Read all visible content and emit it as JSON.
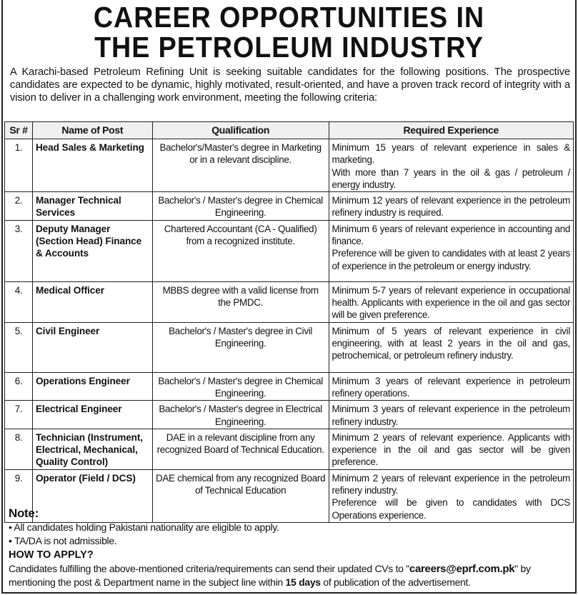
{
  "title": {
    "line1": "CAREER OPPORTUNITIES IN",
    "line2": "THE PETROLEUM INDUSTRY"
  },
  "intro": "A Karachi-based Petroleum Refining Unit is seeking suitable candidates for the following positions. The prospective candidates are expected to be dynamic, highly motivated, result-oriented, and have a proven track record of integrity with a vision to deliver in a challenging work environment, meeting the following criteria:",
  "table": {
    "headers": [
      "Sr #",
      "Name of Post",
      "Qualification",
      "Required Experience"
    ],
    "rows": [
      {
        "sr": "1.",
        "post": "Head Sales & Marketing",
        "qualification": "Bachelor's/Master's degree in Marketing or in a relevant discipline.",
        "experience": [
          "Minimum 15 years of relevant experience in sales & marketing.",
          "With more than 7 years in the oil & gas / petroleum / energy industry."
        ]
      },
      {
        "sr": "2.",
        "post": "Manager Technical Services",
        "qualification": "Bachelor's / Master's degree in Chemical Engineering.",
        "experience": [
          "Minimum 12 years of relevant experience in the petroleum refinery industry is required."
        ]
      },
      {
        "sr": "3.",
        "post": "Deputy Manager (Section Head) Finance & Accounts",
        "qualification": "Chartered Accountant (CA - Qualified) from a recognized institute.",
        "experience": [
          "Minimum 6 years of relevant experience in accounting and finance.",
          "Preference will be given to candidates with at least 2 years of experience in the petroleum or energy industry."
        ]
      },
      {
        "sr": "4.",
        "post": "Medical Officer",
        "qualification": "MBBS degree with a valid license from the PMDC.",
        "experience": [
          "Minimum 5-7 years of relevant experience in occupational health. Applicants with experience in the oil and gas sector will be given preference."
        ]
      },
      {
        "sr": "5.",
        "post": "Civil Engineer",
        "qualification": "Bachelor's / Master's degree in Civil Engineering.",
        "experience": [
          "Minimum of 5 years of relevant experience in civil engineering, with at least 2 years in the oil and gas, petrochemical, or petroleum refinery industry."
        ]
      },
      {
        "sr": "6.",
        "post": "Operations Engineer",
        "qualification": "Bachelor's / Master's degree in Chemical Engineering.",
        "experience": [
          "Minimum 3 years of relevant experience in petroleum refinery operations."
        ]
      },
      {
        "sr": "7.",
        "post": "Electrical Engineer",
        "qualification": "Bachelor's / Master's degree in Electrical Engineering.",
        "experience": [
          "Minimum 3 years of relevant experience in the petroleum refinery industry."
        ]
      },
      {
        "sr": "8.",
        "post": "Technician (Instrument, Electrical, Mechanical, Quality Control)",
        "qualification": "DAE in a relevant discipline from any recognized Board of Technical Education.",
        "experience": [
          "Minimum 2 years of relevant experience. Applicants with experience in the oil and gas sector will be given preference."
        ]
      },
      {
        "sr": "9.",
        "post": "Operator (Field / DCS)",
        "qualification": "DAE chemical from any recognized Board of Technical Education",
        "experience": [
          "Minimum 2 years of relevant experience in the petroleum refinery industry.",
          "Preference will be given to candidates with DCS Operations experience."
        ]
      }
    ]
  },
  "note": {
    "heading": "Note:",
    "items": [
      "All candidates holding Pakistani nationality are eligible to apply.",
      "TA/DA is not admissible."
    ]
  },
  "apply": {
    "heading": "HOW TO APPLY?",
    "text1": "Candidates fulfilling the above-mentioned criteria/requirements can send their updated CVs to \"",
    "email": "careers@eprf.com.pk",
    "text2": "\" by mentioning the post & Department name in the subject line within ",
    "days": "15 days",
    "text3": " of publication of the advertisement."
  }
}
